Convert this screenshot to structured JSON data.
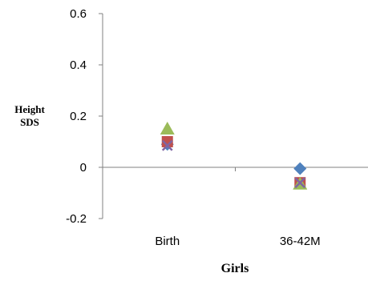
{
  "chart_data": {
    "type": "scatter",
    "title": "",
    "xlabel": "Girls",
    "ylabel": "Height SDS",
    "ylabel_lines": [
      "Height",
      "SDS"
    ],
    "categories": [
      "Birth",
      "36-42M"
    ],
    "ylim": [
      -0.2,
      0.6
    ],
    "yticks": [
      -0.2,
      0,
      0.2,
      0.4,
      0.6
    ],
    "ytick_labels": [
      "-0.2",
      "0",
      "0.2",
      "0.4",
      "0.6"
    ],
    "grid": false,
    "legend": "none",
    "series": [
      {
        "marker": "diamond",
        "color": "#4F81BD",
        "values": [
          0.09,
          -0.005
        ]
      },
      {
        "marker": "square",
        "color": "#C0504D",
        "values": [
          0.1,
          -0.06
        ]
      },
      {
        "marker": "triangle",
        "color": "#9BBB59",
        "values": [
          0.15,
          -0.065
        ]
      },
      {
        "marker": "x",
        "color": "#8064A2",
        "values": [
          0.085,
          -0.06
        ]
      }
    ]
  }
}
